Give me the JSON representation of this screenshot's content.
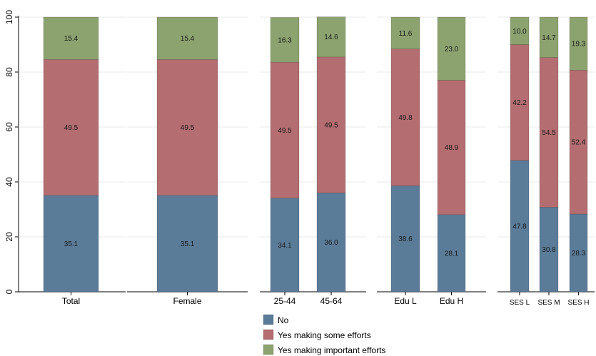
{
  "chart_data": {
    "type": "bar",
    "stacked": true,
    "ylim": [
      0,
      100
    ],
    "yticks": [
      0,
      20,
      40,
      60,
      80,
      100
    ],
    "grid": true,
    "legend_position": "bottom",
    "series": [
      {
        "name": "No",
        "color": "#5b7c99"
      },
      {
        "name": "Yes making some efforts",
        "color": "#b46d70"
      },
      {
        "name": "Yes making important efforts",
        "color": "#8ca36f"
      }
    ],
    "panels": [
      {
        "categories": [
          {
            "label": "Total",
            "values": [
              35.1,
              49.5,
              15.4
            ]
          }
        ]
      },
      {
        "categories": [
          {
            "label": "Female",
            "values": [
              35.1,
              49.5,
              15.4
            ]
          }
        ]
      },
      {
        "categories": [
          {
            "label": "25-44",
            "values": [
              34.1,
              49.5,
              16.3
            ]
          },
          {
            "label": "45-64",
            "values": [
              36.0,
              49.5,
              14.6
            ]
          }
        ]
      },
      {
        "categories": [
          {
            "label": "Edu L",
            "values": [
              38.6,
              49.8,
              11.6
            ]
          },
          {
            "label": "Edu H",
            "values": [
              28.1,
              48.9,
              23.0
            ]
          }
        ]
      },
      {
        "small_labels": true,
        "categories": [
          {
            "label": "SES L",
            "values": [
              47.8,
              42.2,
              10.0
            ]
          },
          {
            "label": "SES M",
            "values": [
              30.8,
              54.5,
              14.7
            ]
          },
          {
            "label": "SES H",
            "values": [
              28.3,
              52.4,
              19.3
            ]
          }
        ]
      }
    ]
  }
}
